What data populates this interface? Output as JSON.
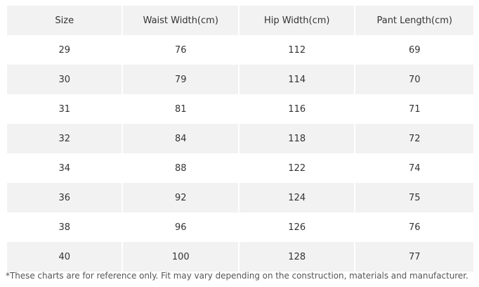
{
  "table": {
    "headers": [
      "Size",
      "Waist Width(cm)",
      "Hip Width(cm)",
      "Pant Length(cm)"
    ],
    "rows": [
      [
        "29",
        "76",
        "112",
        "69"
      ],
      [
        "30",
        "79",
        "114",
        "70"
      ],
      [
        "31",
        "81",
        "116",
        "71"
      ],
      [
        "32",
        "84",
        "118",
        "72"
      ],
      [
        "34",
        "88",
        "122",
        "74"
      ],
      [
        "36",
        "92",
        "124",
        "75"
      ],
      [
        "38",
        "96",
        "126",
        "76"
      ],
      [
        "40",
        "100",
        "128",
        "77"
      ]
    ]
  },
  "footnote": "*These charts are for reference only. Fit may vary depending on the construction, materials and manufacturer."
}
